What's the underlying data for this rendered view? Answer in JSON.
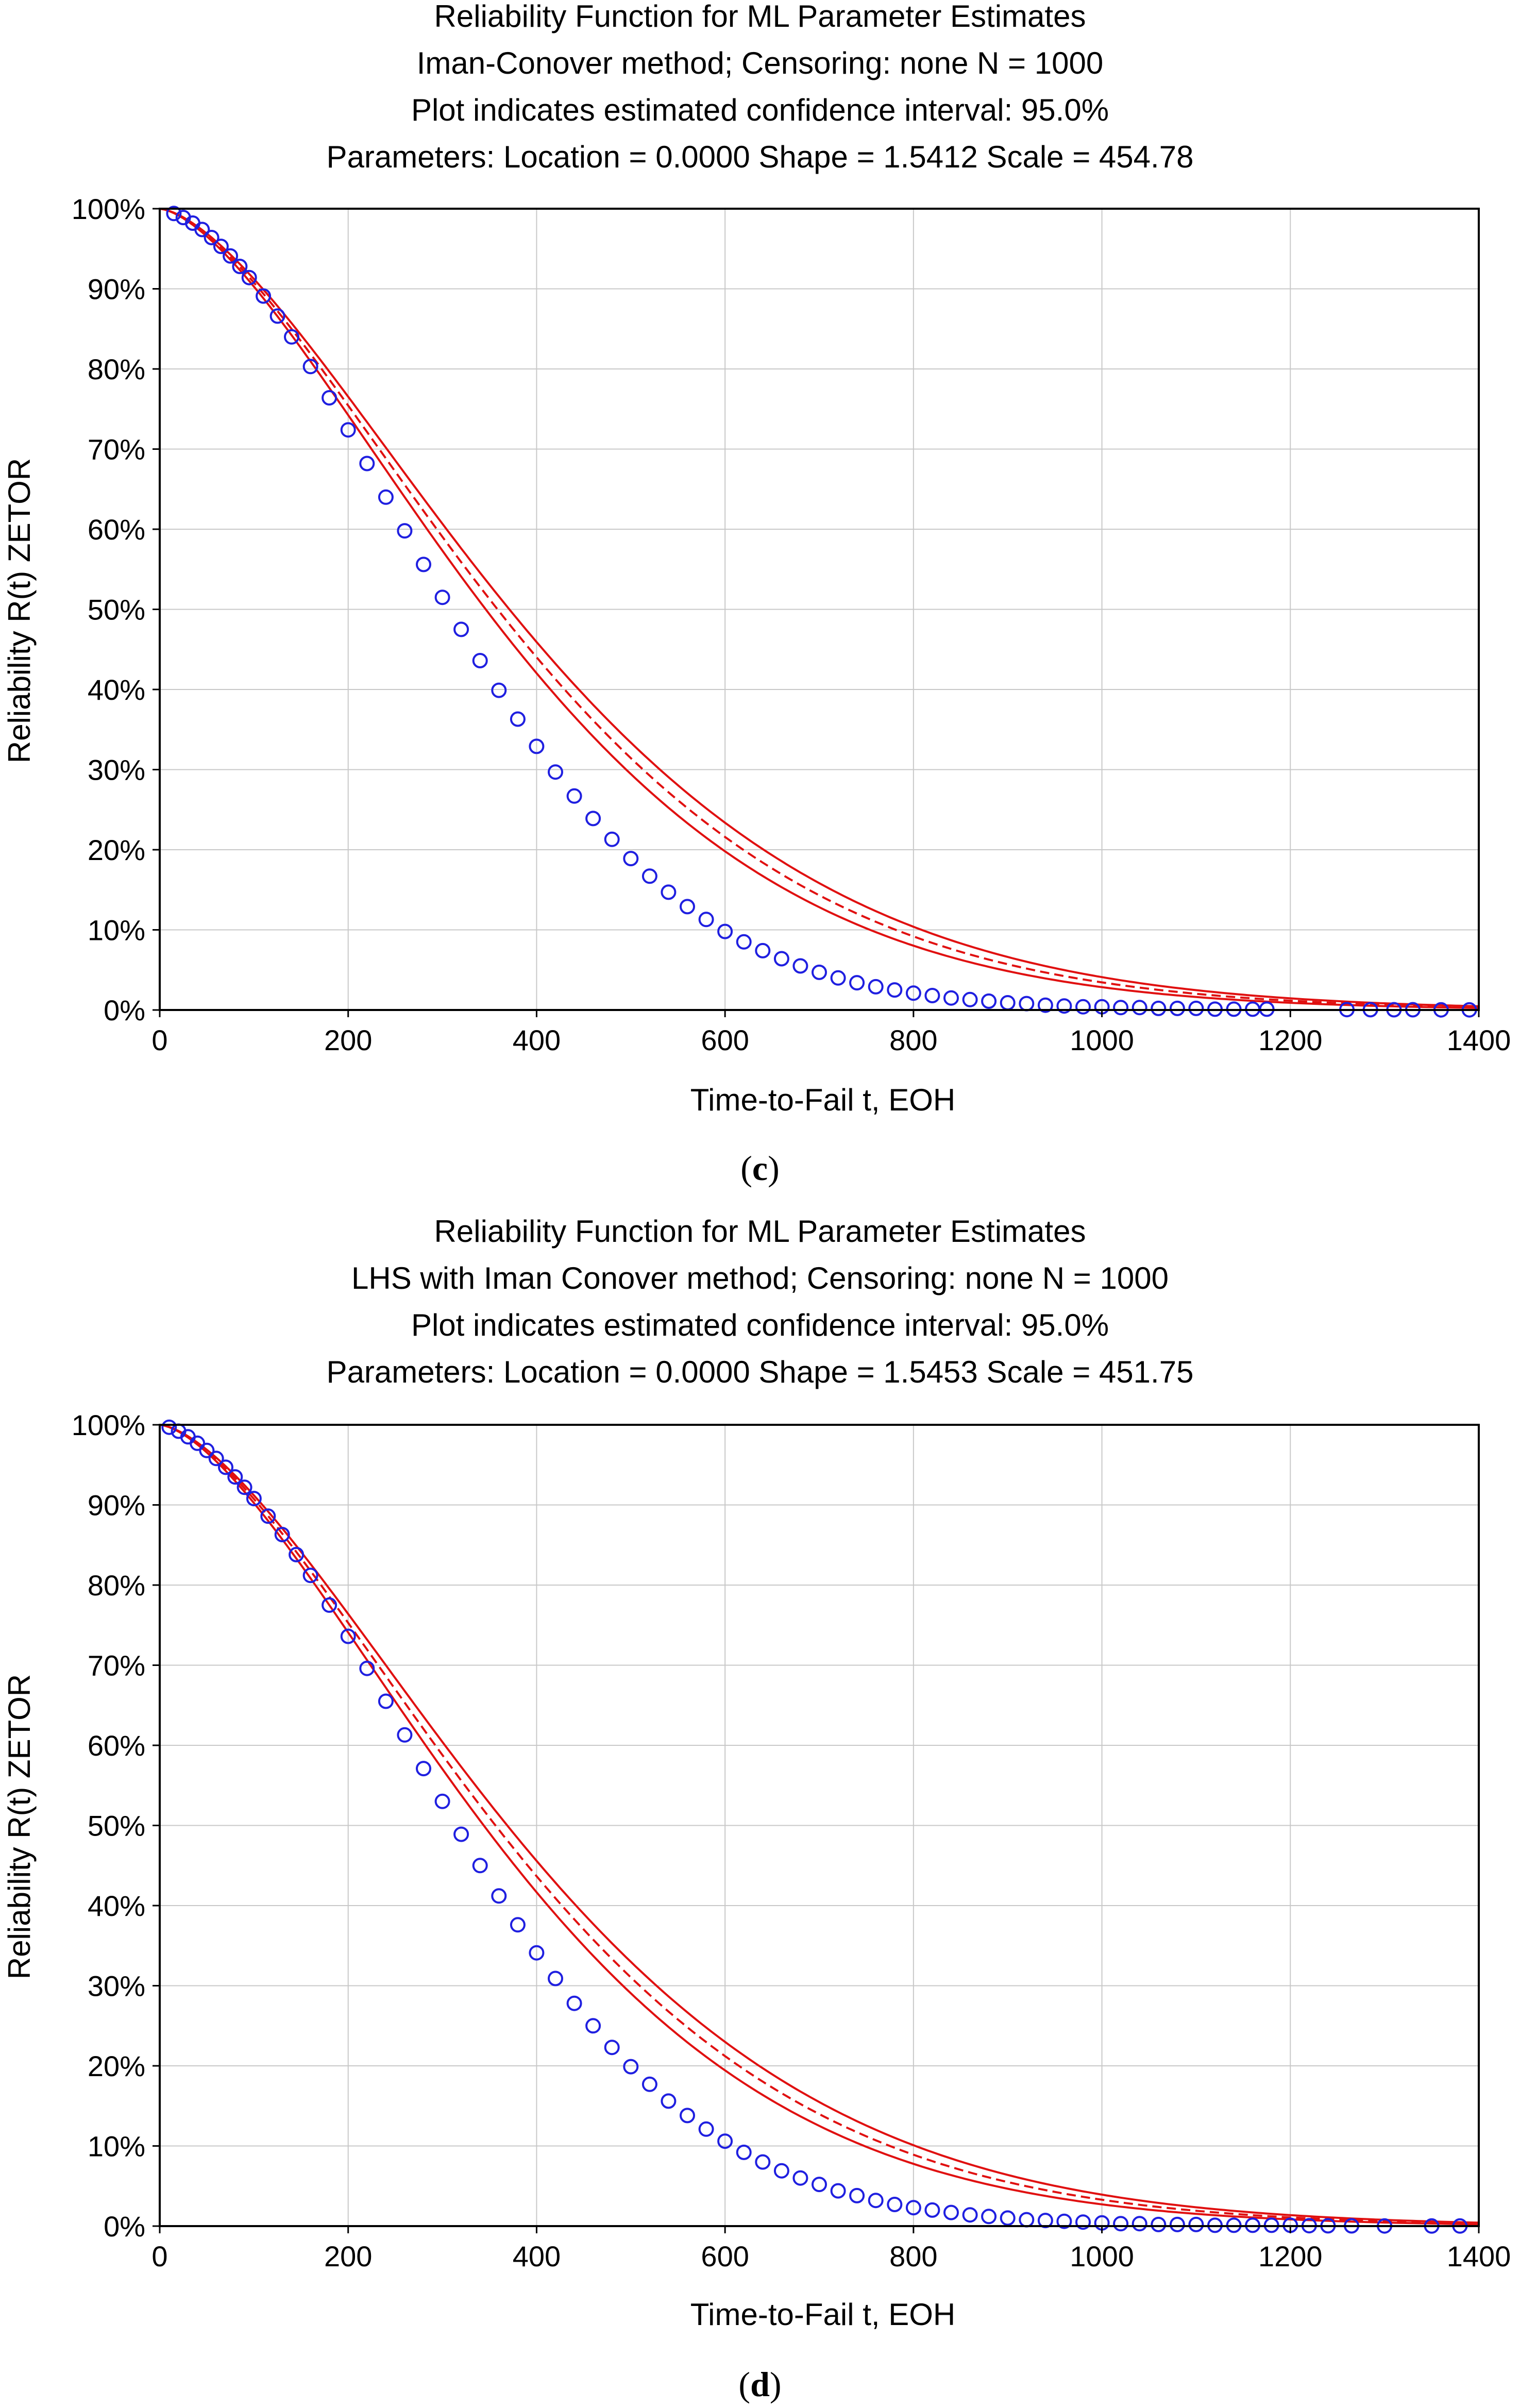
{
  "colors": {
    "points": "#1f1fe0",
    "fit_line": "#e01010",
    "ci_line": "#e01010",
    "grid": "#c8c8c8",
    "axis": "#000000"
  },
  "chart_data": [
    {
      "type": "scatter",
      "panel_label": "c",
      "title": [
        "Reliability Function for ML Parameter Estimates",
        "Iman-Conover method; Censoring: none N = 1000",
        "Plot indicates estimated confidence interval: 95.0%",
        "Parameters: Location = 0.0000  Shape = 1.5412  Scale = 454.78"
      ],
      "xlabel": "Time-to-Fail t, EOH",
      "ylabel": "Reliability R(t) ZETOR",
      "xlim": [
        0,
        1400
      ],
      "ylim": [
        0,
        100
      ],
      "xticks": [
        "0",
        "200",
        "400",
        "600",
        "800",
        "1000",
        "1200",
        "1400"
      ],
      "yticks": [
        "0%",
        "10%",
        "20%",
        "30%",
        "40%",
        "50%",
        "60%",
        "70%",
        "80%",
        "90%",
        "100%"
      ],
      "grid": true,
      "weibull": {
        "location": 0,
        "shape": 1.5412,
        "scale": 454.78
      },
      "confidence_interval": 95.0,
      "series": [
        {
          "kind": "points",
          "x": [
            15,
            25,
            35,
            45,
            55,
            65,
            75,
            85,
            95,
            110,
            125,
            140,
            160,
            180,
            200,
            220,
            240,
            260,
            280,
            300,
            320,
            340,
            360,
            380,
            400,
            420,
            440,
            460,
            480,
            500,
            520,
            540,
            560,
            580,
            600,
            620,
            640,
            660,
            680,
            700,
            720,
            740,
            760,
            780,
            800,
            820,
            840,
            860,
            880,
            900,
            920,
            940,
            960,
            980,
            1000,
            1020,
            1040,
            1060,
            1080,
            1100,
            1120,
            1140,
            1160,
            1175,
            1260,
            1285,
            1310,
            1330,
            1360,
            1390
          ],
          "y": [
            99.4,
            98.9,
            98.2,
            97.4,
            96.4,
            95.3,
            94.1,
            92.8,
            91.4,
            89.1,
            86.6,
            84.0,
            80.3,
            76.4,
            72.4,
            68.2,
            64.0,
            59.8,
            55.6,
            51.5,
            47.5,
            43.6,
            39.9,
            36.3,
            32.9,
            29.7,
            26.7,
            23.9,
            21.3,
            18.9,
            16.7,
            14.7,
            12.9,
            11.3,
            9.8,
            8.5,
            7.4,
            6.4,
            5.5,
            4.7,
            4.0,
            3.4,
            2.9,
            2.5,
            2.1,
            1.8,
            1.5,
            1.3,
            1.1,
            0.9,
            0.8,
            0.6,
            0.5,
            0.4,
            0.4,
            0.3,
            0.3,
            0.2,
            0.2,
            0.2,
            0.1,
            0.1,
            0.1,
            0.1,
            0.05,
            0.04,
            0.03,
            0.03,
            0.02,
            0.02
          ]
        }
      ]
    },
    {
      "type": "scatter",
      "panel_label": "d",
      "title": [
        "Reliability Function for ML Parameter Estimates",
        "LHS with Iman Conover method; Censoring: none N = 1000",
        "Plot indicates estimated confidence interval: 95.0%",
        "Parameters: Location = 0.0000  Shape = 1.5453  Scale = 451.75"
      ],
      "xlabel": "Time-to-Fail t, EOH",
      "ylabel": "Reliability R(t) ZETOR",
      "xlim": [
        0,
        1400
      ],
      "ylim": [
        0,
        100
      ],
      "xticks": [
        "0",
        "200",
        "400",
        "600",
        "800",
        "1000",
        "1200",
        "1400"
      ],
      "yticks": [
        "0%",
        "10%",
        "20%",
        "30%",
        "40%",
        "50%",
        "60%",
        "70%",
        "80%",
        "90%",
        "100%"
      ],
      "grid": true,
      "weibull": {
        "location": 0,
        "shape": 1.5453,
        "scale": 451.75
      },
      "confidence_interval": 95.0,
      "series": [
        {
          "kind": "points",
          "x": [
            10,
            20,
            30,
            40,
            50,
            60,
            70,
            80,
            90,
            100,
            115,
            130,
            145,
            160,
            180,
            200,
            220,
            240,
            260,
            280,
            300,
            320,
            340,
            360,
            380,
            400,
            420,
            440,
            460,
            480,
            500,
            520,
            540,
            560,
            580,
            600,
            620,
            640,
            660,
            680,
            700,
            720,
            740,
            760,
            780,
            800,
            820,
            840,
            860,
            880,
            900,
            920,
            940,
            960,
            980,
            1000,
            1020,
            1040,
            1060,
            1080,
            1100,
            1120,
            1140,
            1160,
            1180,
            1200,
            1220,
            1240,
            1265,
            1300,
            1350,
            1380
          ],
          "y": [
            99.7,
            99.2,
            98.5,
            97.7,
            96.8,
            95.8,
            94.7,
            93.5,
            92.2,
            90.8,
            88.6,
            86.3,
            83.8,
            81.2,
            77.5,
            73.6,
            69.6,
            65.5,
            61.3,
            57.1,
            53.0,
            48.9,
            45.0,
            41.2,
            37.6,
            34.1,
            30.9,
            27.8,
            25.0,
            22.3,
            19.9,
            17.7,
            15.6,
            13.8,
            12.1,
            10.6,
            9.2,
            8.0,
            6.9,
            6.0,
            5.2,
            4.4,
            3.8,
            3.2,
            2.7,
            2.3,
            2.0,
            1.7,
            1.4,
            1.2,
            1.0,
            0.8,
            0.7,
            0.6,
            0.5,
            0.4,
            0.3,
            0.3,
            0.2,
            0.2,
            0.2,
            0.1,
            0.1,
            0.1,
            0.1,
            0.1,
            0.05,
            0.04,
            0.03,
            0.02,
            0.01,
            0.01
          ]
        }
      ]
    }
  ]
}
